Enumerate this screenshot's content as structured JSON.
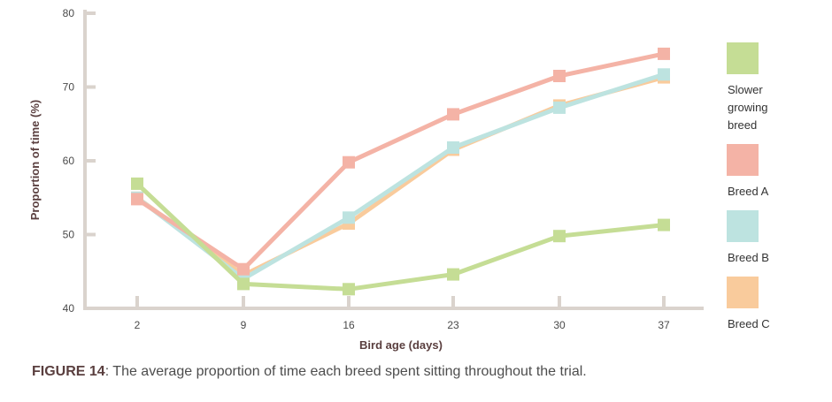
{
  "caption": {
    "label": "FIGURE 14",
    "text": ": The average proportion of time each breed spent sitting throughout the trial."
  },
  "chart_data": {
    "type": "line",
    "xlabel": "Bird age (days)",
    "ylabel": "Proportion of time (%)",
    "x": [
      2,
      9,
      16,
      23,
      30,
      37
    ],
    "xtick_labels": [
      "2",
      "9",
      "16",
      "23",
      "30",
      "37"
    ],
    "ylim": [
      40,
      80
    ],
    "yticks": [
      40,
      50,
      60,
      70,
      80
    ],
    "ytick_labels": [
      "40",
      "50",
      "60",
      "70",
      "80"
    ],
    "grid": false,
    "legend_position": "right",
    "series": [
      {
        "name": "Breed C",
        "color": "#F9CB9C",
        "values": [
          55,
          44.5,
          51.5,
          61.5,
          67.5,
          71.3
        ]
      },
      {
        "name": "Breed B",
        "color": "#BDE3E0",
        "values": [
          55,
          44,
          52.3,
          61.8,
          67.2,
          71.7
        ]
      },
      {
        "name": "Breed A",
        "color": "#F4B3A6",
        "values": [
          54.8,
          45.3,
          59.8,
          66.3,
          71.5,
          74.5
        ]
      },
      {
        "name": "Slower growing breed",
        "color": "#C5DD95",
        "values": [
          56.9,
          43.3,
          42.6,
          44.6,
          49.8,
          51.3
        ]
      }
    ],
    "legend": [
      {
        "lines": [
          "Slower",
          "growing",
          "breed"
        ],
        "color": "#C5DD95"
      },
      {
        "lines": [
          "Breed A"
        ],
        "color": "#F4B3A6"
      },
      {
        "lines": [
          "Breed B"
        ],
        "color": "#BDE3E0"
      },
      {
        "lines": [
          "Breed C"
        ],
        "color": "#F9CB9C"
      }
    ]
  }
}
